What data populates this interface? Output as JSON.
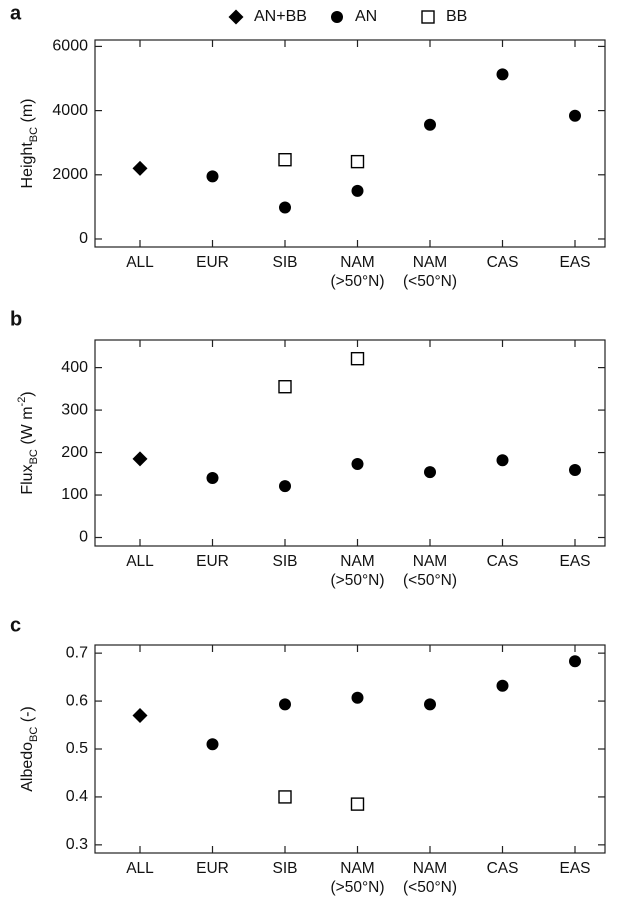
{
  "chart_data": [
    {
      "type": "scatter",
      "panel": "a",
      "legend": "top",
      "ylabel": [
        {
          "text": "Height"
        },
        {
          "sub": "BC"
        },
        {
          "text": " (m)"
        }
      ],
      "categories": [
        "ALL",
        "EUR",
        "SIB",
        "NAM (>50°N)",
        "NAM (<50°N)",
        "CAS",
        "EAS"
      ],
      "series": [
        {
          "name": "AN+BB",
          "color": "#000000",
          "marker": "diamond",
          "values": [
            2200,
            null,
            null,
            null,
            null,
            null,
            null
          ]
        },
        {
          "name": "AN",
          "color": "#000000",
          "marker": "circle",
          "values": [
            null,
            1950,
            980,
            1500,
            3560,
            5130,
            3840
          ]
        },
        {
          "name": "BB",
          "color": "#000000",
          "marker": "square-open",
          "values": [
            null,
            null,
            2470,
            2410,
            null,
            null,
            null
          ]
        }
      ],
      "ylim": [
        -250,
        6200
      ],
      "yticks": [
        0,
        2000,
        4000,
        6000
      ]
    },
    {
      "type": "scatter",
      "panel": "b",
      "legend": false,
      "ylabel": [
        {
          "text": "Flux"
        },
        {
          "sub": "BC"
        },
        {
          "text": " (W m"
        },
        {
          "sup": "-2"
        },
        {
          "text": ")"
        }
      ],
      "categories": [
        "ALL",
        "EUR",
        "SIB",
        "NAM (>50°N)",
        "NAM (<50°N)",
        "CAS",
        "EAS"
      ],
      "series": [
        {
          "name": "AN+BB",
          "color": "#000000",
          "marker": "diamond",
          "values": [
            185,
            null,
            null,
            null,
            null,
            null,
            null
          ]
        },
        {
          "name": "AN",
          "color": "#000000",
          "marker": "circle",
          "values": [
            null,
            140,
            121,
            173,
            154,
            182,
            159
          ]
        },
        {
          "name": "BB",
          "color": "#000000",
          "marker": "square-open",
          "values": [
            null,
            null,
            355,
            421,
            null,
            null,
            null
          ]
        }
      ],
      "ylim": [
        -20,
        465
      ],
      "yticks": [
        0,
        100,
        200,
        300,
        400
      ]
    },
    {
      "type": "scatter",
      "panel": "c",
      "legend": false,
      "ylabel": [
        {
          "text": "Albedo"
        },
        {
          "sub": "BC"
        },
        {
          "text": " (-)"
        }
      ],
      "categories": [
        "ALL",
        "EUR",
        "SIB",
        "NAM (>50°N)",
        "NAM (<50°N)",
        "CAS",
        "EAS"
      ],
      "series": [
        {
          "name": "AN+BB",
          "color": "#000000",
          "marker": "diamond",
          "values": [
            0.57,
            null,
            null,
            null,
            null,
            null,
            null
          ]
        },
        {
          "name": "AN",
          "color": "#000000",
          "marker": "circle",
          "values": [
            null,
            0.51,
            0.593,
            0.607,
            0.593,
            0.632,
            0.683
          ]
        },
        {
          "name": "BB",
          "color": "#000000",
          "marker": "square-open",
          "values": [
            null,
            null,
            0.4,
            0.385,
            null,
            null,
            null
          ]
        }
      ],
      "ylim": [
        0.283,
        0.717
      ],
      "yticks": [
        0.3,
        0.4,
        0.5,
        0.6,
        0.7
      ]
    }
  ]
}
